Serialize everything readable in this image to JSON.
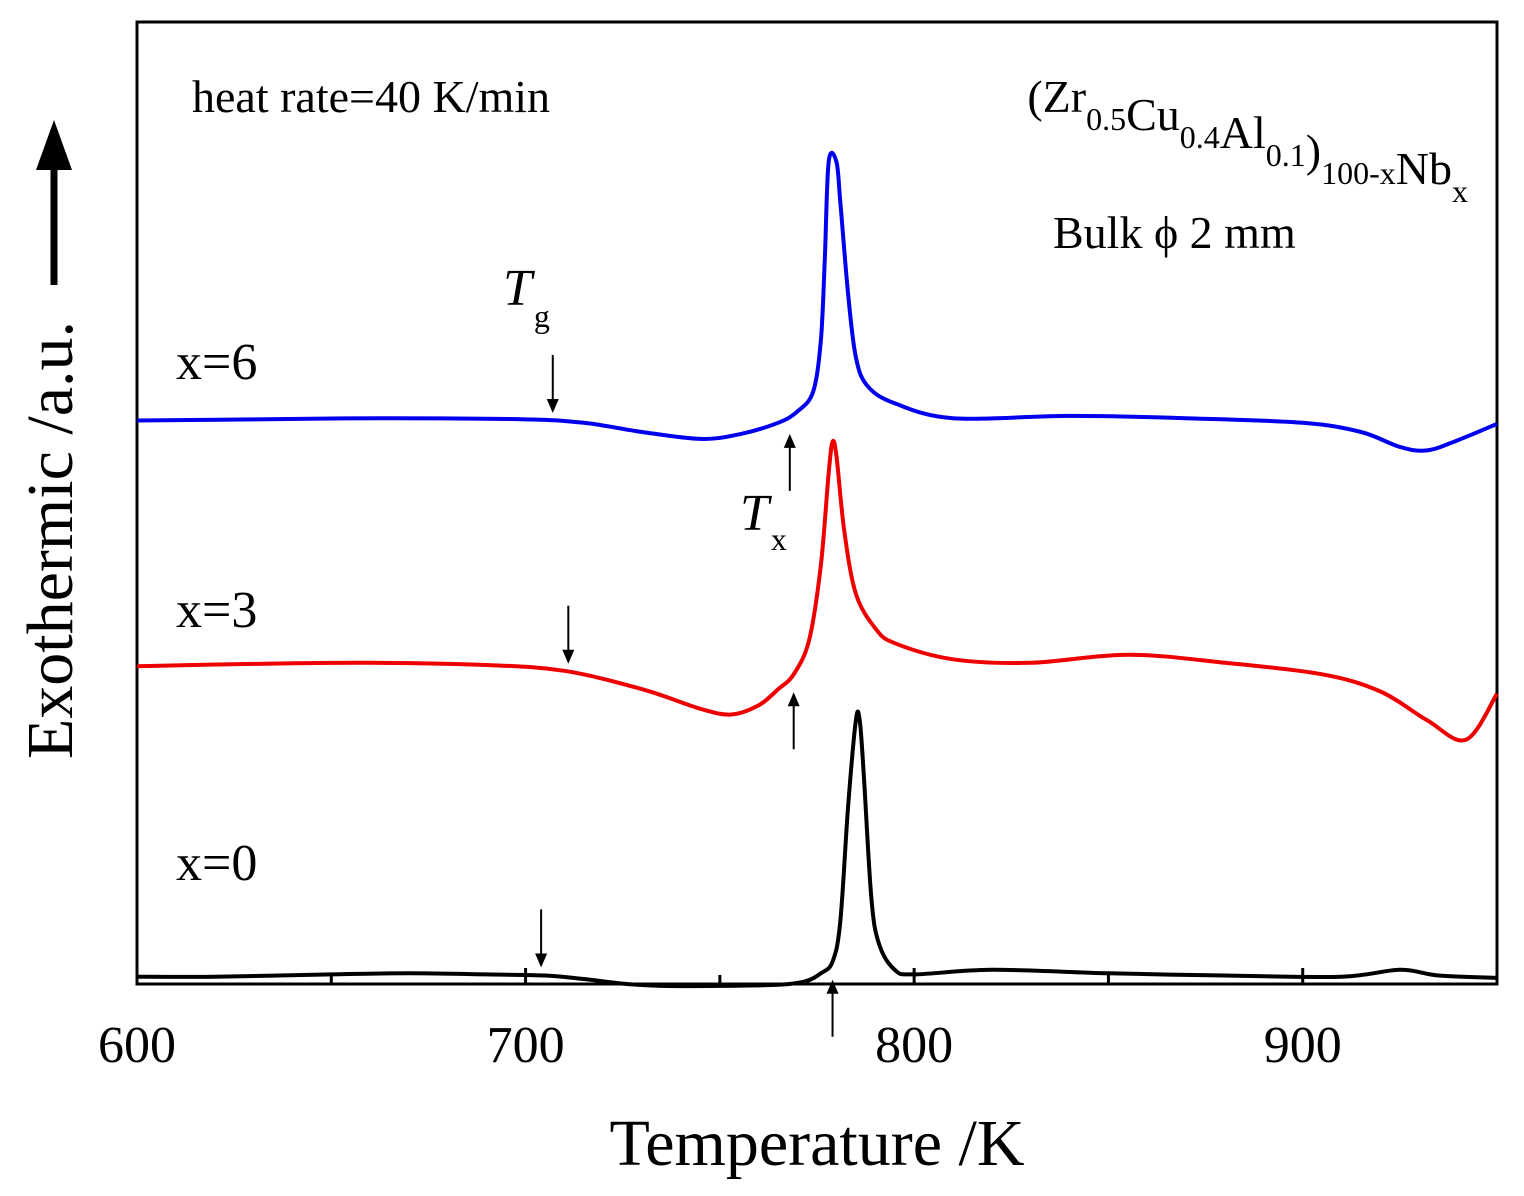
{
  "chart_data": {
    "type": "line",
    "title": "",
    "xlabel": "Temperature /K",
    "ylabel": "Exothermic /a.u.",
    "xlim": [
      600,
      950
    ],
    "x_ticks": [
      600,
      700,
      800,
      900
    ],
    "x_minor_ticks": [
      650,
      750,
      850
    ],
    "y_ticks": [],
    "grid": false,
    "legend": "none",
    "annotations": {
      "heat_rate": "heat rate=40 K/min",
      "composition": {
        "parts": [
          {
            "text": "(Zr",
            "sub": "0.5"
          },
          {
            "text": "Cu",
            "sub": "0.4"
          },
          {
            "text": "Al",
            "sub": "0.1"
          },
          {
            "text": ")",
            "sub": "100-x"
          },
          {
            "text": "Nb",
            "sub": "x"
          }
        ]
      },
      "sample": "Bulk ϕ 2 mm",
      "tg_label": {
        "main": "T",
        "sub": "g"
      },
      "tx_label": {
        "main": "T",
        "sub": "x"
      }
    },
    "series": [
      {
        "name": "x=0",
        "label": "x=0",
        "color": "#000000",
        "Tg": 704,
        "Tx": 779,
        "points": [
          [
            600,
            -0.58
          ],
          [
            620,
            -0.58
          ],
          [
            650,
            -0.56
          ],
          [
            670,
            -0.55
          ],
          [
            690,
            -0.56
          ],
          [
            705,
            -0.57
          ],
          [
            715,
            -0.6
          ],
          [
            725,
            -0.64
          ],
          [
            735,
            -0.66
          ],
          [
            750,
            -0.66
          ],
          [
            765,
            -0.65
          ],
          [
            772,
            -0.62
          ],
          [
            776,
            -0.55
          ],
          [
            779,
            -0.45
          ],
          [
            781,
            -0.1
          ],
          [
            783,
            0.9
          ],
          [
            785,
            1.65
          ],
          [
            786,
            1.65
          ],
          [
            787,
            1.2
          ],
          [
            789,
            0.1
          ],
          [
            791,
            -0.3
          ],
          [
            795,
            -0.52
          ],
          [
            800,
            -0.56
          ],
          [
            820,
            -0.52
          ],
          [
            850,
            -0.55
          ],
          [
            880,
            -0.57
          ],
          [
            910,
            -0.58
          ],
          [
            925,
            -0.52
          ],
          [
            935,
            -0.57
          ],
          [
            950,
            -0.59
          ]
        ]
      },
      {
        "name": "x=3",
        "label": "x=3",
        "color": "#ee0000",
        "Tg": 711,
        "Tx": 769,
        "points": [
          [
            600,
            -0.08
          ],
          [
            630,
            -0.06
          ],
          [
            660,
            -0.05
          ],
          [
            690,
            -0.07
          ],
          [
            710,
            -0.12
          ],
          [
            730,
            -0.28
          ],
          [
            745,
            -0.45
          ],
          [
            753,
            -0.5
          ],
          [
            760,
            -0.42
          ],
          [
            765,
            -0.28
          ],
          [
            769,
            -0.15
          ],
          [
            773,
            0.15
          ],
          [
            776,
            0.8
          ],
          [
            778,
            1.6
          ],
          [
            779,
            1.87
          ],
          [
            780,
            1.75
          ],
          [
            782,
            1.1
          ],
          [
            785,
            0.55
          ],
          [
            790,
            0.25
          ],
          [
            795,
            0.12
          ],
          [
            810,
            -0.02
          ],
          [
            830,
            -0.05
          ],
          [
            855,
            0.02
          ],
          [
            880,
            -0.05
          ],
          [
            905,
            -0.15
          ],
          [
            920,
            -0.3
          ],
          [
            932,
            -0.55
          ],
          [
            942,
            -0.72
          ],
          [
            950,
            -0.32
          ]
        ]
      },
      {
        "name": "x=6",
        "label": "x=6",
        "color": "#0000ee",
        "Tg": 707,
        "Tx": 768,
        "points": [
          [
            600,
            -0.1
          ],
          [
            630,
            -0.09
          ],
          [
            665,
            -0.08
          ],
          [
            700,
            -0.09
          ],
          [
            715,
            -0.12
          ],
          [
            730,
            -0.2
          ],
          [
            745,
            -0.26
          ],
          [
            755,
            -0.22
          ],
          [
            765,
            -0.12
          ],
          [
            770,
            -0.02
          ],
          [
            774,
            0.15
          ],
          [
            776,
            0.6
          ],
          [
            777,
            1.3
          ],
          [
            778,
            2.15
          ],
          [
            780,
            2.15
          ],
          [
            781,
            1.8
          ],
          [
            783,
            1.0
          ],
          [
            785,
            0.45
          ],
          [
            788,
            0.2
          ],
          [
            795,
            0.05
          ],
          [
            810,
            -0.08
          ],
          [
            840,
            -0.06
          ],
          [
            870,
            -0.08
          ],
          [
            900,
            -0.12
          ],
          [
            915,
            -0.2
          ],
          [
            925,
            -0.33
          ],
          [
            932,
            -0.36
          ],
          [
            940,
            -0.27
          ],
          [
            950,
            -0.13
          ]
        ]
      }
    ]
  }
}
